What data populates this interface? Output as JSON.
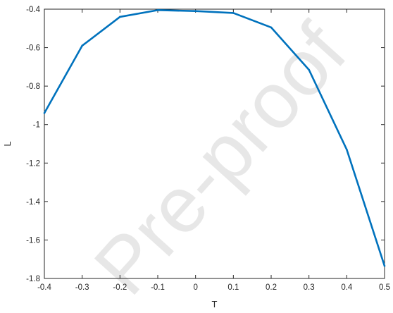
{
  "chart_data": {
    "type": "line",
    "xlabel": "T",
    "ylabel": "L",
    "xlim": [
      -0.4,
      0.5
    ],
    "ylim": [
      -1.8,
      -0.4
    ],
    "xticks": [
      -0.4,
      -0.3,
      -0.2,
      -0.1,
      0,
      0.1,
      0.2,
      0.3,
      0.4,
      0.5
    ],
    "yticks": [
      -1.8,
      -1.6,
      -1.4,
      -1.2,
      -1,
      -0.8,
      -0.6,
      -0.4
    ],
    "xtick_labels": [
      "-0.4",
      "-0.3",
      "-0.2",
      "-0.1",
      "0",
      "0.1",
      "0.2",
      "0.3",
      "0.4",
      "0.5"
    ],
    "ytick_labels": [
      "-1.8",
      "-1.6",
      "-1.4",
      "-1.2",
      "-1",
      "-0.8",
      "-0.6",
      "-0.4"
    ],
    "grid": false,
    "series": [
      {
        "color": "#0072bd",
        "x": [
          -0.4,
          -0.3,
          -0.2,
          -0.1,
          0,
          0.1,
          0.2,
          0.3,
          0.4,
          0.5
        ],
        "y": [
          -0.94,
          -0.59,
          -0.44,
          -0.405,
          -0.41,
          -0.42,
          -0.495,
          -0.715,
          -1.13,
          -1.735
        ]
      }
    ]
  },
  "watermark": {
    "text": "Pre-proof"
  }
}
